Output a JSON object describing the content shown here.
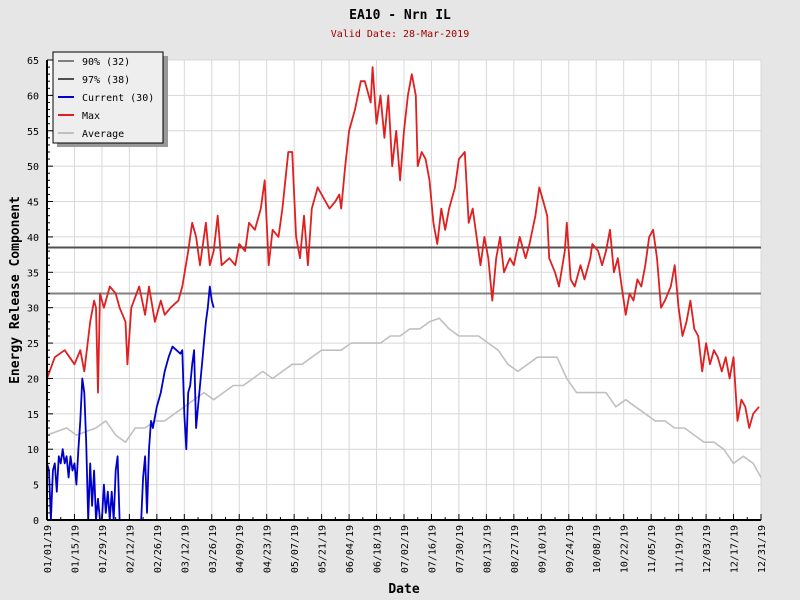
{
  "chart_data": {
    "type": "line",
    "title": "EA10 - Nrn IL",
    "subtitle": "Valid Date: 28-Mar-2019",
    "xlabel": "Date",
    "ylabel": "Energy Release Component",
    "ylim": [
      0,
      65
    ],
    "xlim_days": [
      0,
      364
    ],
    "yticks": [
      "0",
      "5",
      "10",
      "15",
      "20",
      "25",
      "30",
      "35",
      "40",
      "45",
      "50",
      "55",
      "60",
      "65"
    ],
    "xticks": [
      "01/01/19",
      "01/15/19",
      "01/29/19",
      "02/12/19",
      "02/26/19",
      "03/12/19",
      "03/26/19",
      "04/09/19",
      "04/23/19",
      "05/07/19",
      "05/21/19",
      "06/04/19",
      "06/18/19",
      "07/02/19",
      "07/16/19",
      "07/30/19",
      "08/13/19",
      "08/27/19",
      "09/10/19",
      "09/24/19",
      "10/08/19",
      "10/22/19",
      "11/05/19",
      "11/19/19",
      "12/03/19",
      "12/17/19",
      "12/31/19"
    ],
    "grid": true,
    "legend_position": "top-left",
    "legend": [
      "90% (32)",
      "97% (38)",
      "Current (30)",
      "Max",
      "Average"
    ],
    "colors": {
      "p90": "#808080",
      "p97": "#505050",
      "current": "#0000cc",
      "max": "#e02020",
      "average": "#c0c0c0"
    },
    "thresholds": {
      "p90": 32,
      "p97": 38.5
    },
    "series": [
      {
        "name": "Average",
        "key": "average",
        "points": [
          [
            0,
            12
          ],
          [
            5,
            12.5
          ],
          [
            10,
            13
          ],
          [
            15,
            12
          ],
          [
            20,
            12.5
          ],
          [
            25,
            13
          ],
          [
            30,
            14
          ],
          [
            35,
            12
          ],
          [
            40,
            11
          ],
          [
            45,
            13
          ],
          [
            50,
            13
          ],
          [
            55,
            14
          ],
          [
            60,
            14
          ],
          [
            65,
            15
          ],
          [
            70,
            16
          ],
          [
            75,
            17
          ],
          [
            80,
            18
          ],
          [
            85,
            17
          ],
          [
            90,
            18
          ],
          [
            95,
            19
          ],
          [
            100,
            19
          ],
          [
            105,
            20
          ],
          [
            110,
            21
          ],
          [
            115,
            20
          ],
          [
            120,
            21
          ],
          [
            125,
            22
          ],
          [
            130,
            22
          ],
          [
            135,
            23
          ],
          [
            140,
            24
          ],
          [
            145,
            24
          ],
          [
            150,
            24
          ],
          [
            155,
            25
          ],
          [
            160,
            25
          ],
          [
            165,
            25
          ],
          [
            170,
            25
          ],
          [
            175,
            26
          ],
          [
            180,
            26
          ],
          [
            185,
            27
          ],
          [
            190,
            27
          ],
          [
            195,
            28
          ],
          [
            200,
            28.5
          ],
          [
            205,
            27
          ],
          [
            210,
            26
          ],
          [
            215,
            26
          ],
          [
            220,
            26
          ],
          [
            225,
            25
          ],
          [
            230,
            24
          ],
          [
            235,
            22
          ],
          [
            240,
            21
          ],
          [
            245,
            22
          ],
          [
            250,
            23
          ],
          [
            255,
            23
          ],
          [
            260,
            23
          ],
          [
            265,
            20
          ],
          [
            270,
            18
          ],
          [
            275,
            18
          ],
          [
            280,
            18
          ],
          [
            285,
            18
          ],
          [
            290,
            16
          ],
          [
            295,
            17
          ],
          [
            300,
            16
          ],
          [
            305,
            15
          ],
          [
            310,
            14
          ],
          [
            315,
            14
          ],
          [
            320,
            13
          ],
          [
            325,
            13
          ],
          [
            330,
            12
          ],
          [
            335,
            11
          ],
          [
            340,
            11
          ],
          [
            345,
            10
          ],
          [
            350,
            8
          ],
          [
            355,
            9
          ],
          [
            360,
            8
          ],
          [
            364,
            6
          ]
        ]
      },
      {
        "name": "Max",
        "key": "max",
        "points": [
          [
            0,
            20
          ],
          [
            4,
            23
          ],
          [
            9,
            24
          ],
          [
            14,
            22
          ],
          [
            17,
            24
          ],
          [
            19,
            21
          ],
          [
            22,
            28
          ],
          [
            24,
            31
          ],
          [
            25,
            30
          ],
          [
            26,
            18
          ],
          [
            27,
            32
          ],
          [
            29,
            30
          ],
          [
            32,
            33
          ],
          [
            35,
            32
          ],
          [
            37,
            30
          ],
          [
            40,
            28
          ],
          [
            41,
            22
          ],
          [
            43,
            30
          ],
          [
            47,
            33
          ],
          [
            50,
            29
          ],
          [
            52,
            33
          ],
          [
            55,
            28
          ],
          [
            58,
            31
          ],
          [
            60,
            29
          ],
          [
            63,
            30
          ],
          [
            67,
            31
          ],
          [
            69,
            33
          ],
          [
            72,
            38
          ],
          [
            74,
            42
          ],
          [
            76,
            40
          ],
          [
            78,
            36
          ],
          [
            81,
            42
          ],
          [
            83,
            36
          ],
          [
            85,
            38
          ],
          [
            87,
            43
          ],
          [
            89,
            36
          ],
          [
            93,
            37
          ],
          [
            96,
            36
          ],
          [
            98,
            39
          ],
          [
            101,
            38
          ],
          [
            103,
            42
          ],
          [
            106,
            41
          ],
          [
            109,
            44
          ],
          [
            111,
            48
          ],
          [
            113,
            36
          ],
          [
            115,
            41
          ],
          [
            118,
            40
          ],
          [
            120,
            44
          ],
          [
            123,
            52
          ],
          [
            125,
            52
          ],
          [
            127,
            40
          ],
          [
            129,
            37
          ],
          [
            131,
            43
          ],
          [
            133,
            36
          ],
          [
            135,
            44
          ],
          [
            138,
            47
          ],
          [
            142,
            45
          ],
          [
            144,
            44
          ],
          [
            147,
            45
          ],
          [
            149,
            46
          ],
          [
            150,
            44
          ],
          [
            152,
            50
          ],
          [
            154,
            55
          ],
          [
            157,
            58
          ],
          [
            160,
            62
          ],
          [
            162,
            62
          ],
          [
            165,
            59
          ],
          [
            166,
            64
          ],
          [
            168,
            56
          ],
          [
            170,
            60
          ],
          [
            172,
            54
          ],
          [
            174,
            60
          ],
          [
            176,
            50
          ],
          [
            178,
            55
          ],
          [
            180,
            48
          ],
          [
            182,
            55
          ],
          [
            184,
            60
          ],
          [
            186,
            63
          ],
          [
            188,
            60
          ],
          [
            189,
            50
          ],
          [
            191,
            52
          ],
          [
            193,
            51
          ],
          [
            195,
            48
          ],
          [
            197,
            42
          ],
          [
            199,
            39
          ],
          [
            201,
            44
          ],
          [
            203,
            41
          ],
          [
            205,
            44
          ],
          [
            208,
            47
          ],
          [
            210,
            51
          ],
          [
            213,
            52
          ],
          [
            215,
            42
          ],
          [
            217,
            44
          ],
          [
            219,
            40
          ],
          [
            221,
            36
          ],
          [
            223,
            40
          ],
          [
            225,
            37
          ],
          [
            227,
            31
          ],
          [
            229,
            37
          ],
          [
            231,
            40
          ],
          [
            233,
            35
          ],
          [
            236,
            37
          ],
          [
            238,
            36
          ],
          [
            241,
            40
          ],
          [
            244,
            37
          ],
          [
            246,
            39
          ],
          [
            249,
            43
          ],
          [
            251,
            47
          ],
          [
            253,
            45
          ],
          [
            255,
            43
          ],
          [
            256,
            37
          ],
          [
            259,
            35
          ],
          [
            261,
            33
          ],
          [
            264,
            38
          ],
          [
            265,
            42
          ],
          [
            267,
            34
          ],
          [
            269,
            33
          ],
          [
            272,
            36
          ],
          [
            274,
            34
          ],
          [
            277,
            37
          ],
          [
            278,
            39
          ],
          [
            281,
            38
          ],
          [
            283,
            36
          ],
          [
            285,
            38
          ],
          [
            287,
            41
          ],
          [
            289,
            35
          ],
          [
            291,
            37
          ],
          [
            293,
            33
          ],
          [
            295,
            29
          ],
          [
            297,
            32
          ],
          [
            299,
            31
          ],
          [
            301,
            34
          ],
          [
            303,
            33
          ],
          [
            305,
            36
          ],
          [
            307,
            40
          ],
          [
            309,
            41
          ],
          [
            311,
            37
          ],
          [
            313,
            30
          ],
          [
            315,
            31
          ],
          [
            318,
            33
          ],
          [
            320,
            36
          ],
          [
            322,
            30
          ],
          [
            324,
            26
          ],
          [
            326,
            28
          ],
          [
            328,
            31
          ],
          [
            330,
            27
          ],
          [
            332,
            26
          ],
          [
            334,
            21
          ],
          [
            336,
            25
          ],
          [
            338,
            22
          ],
          [
            340,
            24
          ],
          [
            342,
            23
          ],
          [
            344,
            21
          ],
          [
            346,
            23
          ],
          [
            348,
            20
          ],
          [
            350,
            23
          ],
          [
            352,
            14
          ],
          [
            354,
            17
          ],
          [
            356,
            16
          ],
          [
            358,
            13
          ],
          [
            360,
            15
          ],
          [
            363,
            16
          ]
        ]
      },
      {
        "name": "Current (30)",
        "key": "current",
        "points": [
          [
            0,
            8
          ],
          [
            1,
            7
          ],
          [
            2,
            0
          ],
          [
            3,
            7
          ],
          [
            4,
            8
          ],
          [
            5,
            4
          ],
          [
            6,
            9
          ],
          [
            7,
            8
          ],
          [
            8,
            10
          ],
          [
            9,
            8
          ],
          [
            10,
            9
          ],
          [
            11,
            6
          ],
          [
            12,
            9
          ],
          [
            13,
            7
          ],
          [
            14,
            8
          ],
          [
            15,
            5
          ],
          [
            16,
            10
          ],
          [
            17,
            14
          ],
          [
            18,
            20
          ],
          [
            19,
            18
          ],
          [
            20,
            11
          ],
          [
            21,
            0
          ],
          [
            22,
            8
          ],
          [
            23,
            2
          ],
          [
            24,
            7
          ],
          [
            25,
            0
          ],
          [
            26,
            3
          ],
          [
            27,
            0
          ],
          [
            28,
            0
          ],
          [
            29,
            5
          ],
          [
            30,
            1
          ],
          [
            31,
            4
          ],
          [
            32,
            0
          ],
          [
            33,
            4
          ],
          [
            34,
            0
          ],
          [
            35,
            7
          ],
          [
            36,
            9
          ],
          [
            37,
            0
          ],
          [
            48,
            0
          ],
          [
            49,
            6
          ],
          [
            50,
            9
          ],
          [
            51,
            1
          ],
          [
            52,
            10
          ],
          [
            53,
            14
          ],
          [
            54,
            13
          ],
          [
            56,
            16
          ],
          [
            58,
            18
          ],
          [
            60,
            21
          ],
          [
            62,
            23
          ],
          [
            64,
            24.5
          ],
          [
            66,
            24
          ],
          [
            68,
            23.5
          ],
          [
            69,
            24
          ],
          [
            70,
            15
          ],
          [
            71,
            10
          ],
          [
            72,
            18
          ],
          [
            73,
            19
          ],
          [
            74,
            22
          ],
          [
            75,
            24
          ],
          [
            76,
            13
          ],
          [
            77,
            16
          ],
          [
            78,
            19
          ],
          [
            79,
            22
          ],
          [
            80,
            25
          ],
          [
            81,
            28
          ],
          [
            82,
            30
          ],
          [
            83,
            33
          ],
          [
            84,
            31
          ],
          [
            85,
            30
          ]
        ]
      }
    ]
  }
}
